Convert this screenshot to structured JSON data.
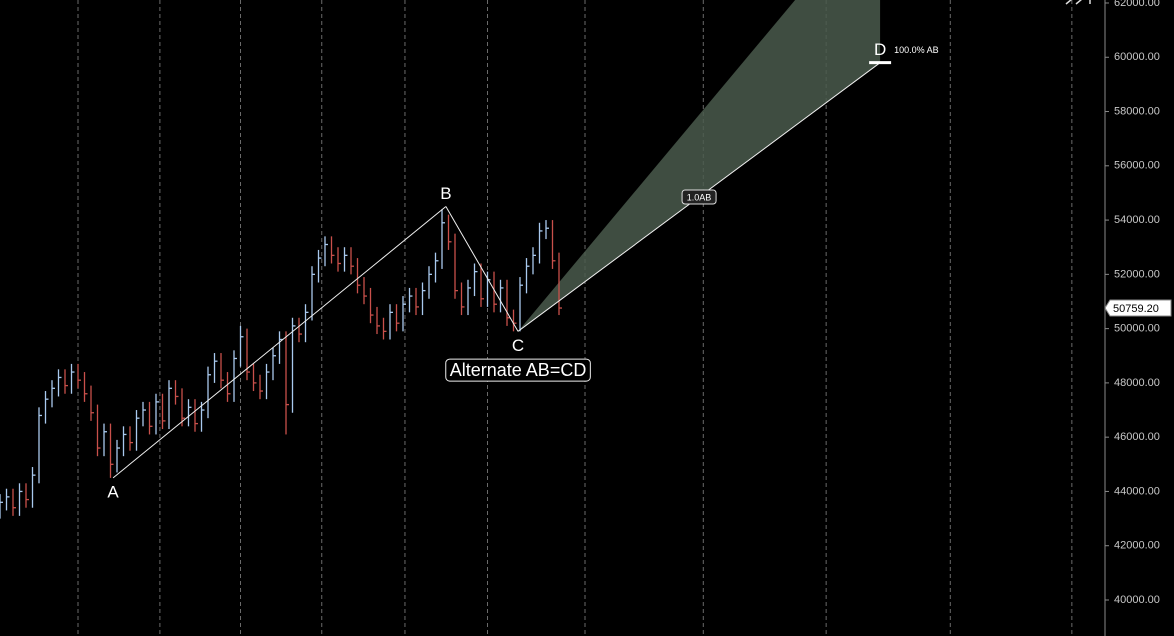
{
  "chart_data": {
    "type": "ohlc",
    "x": [
      0,
      1,
      2,
      3,
      4,
      5,
      6,
      7,
      8,
      9,
      10,
      11,
      12,
      13,
      14,
      15,
      16,
      17,
      18,
      19,
      20,
      21,
      22,
      23,
      24,
      25,
      26,
      27,
      28,
      29,
      30,
      31,
      32,
      33,
      34,
      35,
      36,
      37,
      38,
      39,
      40,
      41,
      42,
      43,
      44,
      45,
      46,
      47,
      48,
      49,
      50,
      51,
      52,
      53,
      54,
      55,
      56,
      57,
      58,
      59,
      60,
      61,
      62,
      63,
      64,
      65,
      66,
      67,
      68,
      69,
      70,
      71,
      72,
      73,
      74,
      75,
      76,
      77,
      78,
      79,
      80,
      81,
      82,
      83,
      84,
      85,
      86
    ],
    "high": [
      43900,
      44100,
      44100,
      44300,
      44300,
      44900,
      47100,
      47700,
      48100,
      48500,
      48500,
      48700,
      48700,
      48400,
      47900,
      47200,
      46500,
      46500,
      45900,
      46400,
      46400,
      47000,
      47300,
      47300,
      47600,
      47600,
      48100,
      48100,
      47800,
      47400,
      47400,
      47300,
      48600,
      49100,
      49100,
      48400,
      49200,
      50100,
      50000,
      48700,
      48300,
      48700,
      49300,
      49900,
      49900,
      50400,
      50400,
      50900,
      52300,
      52900,
      53400,
      53400,
      53000,
      53000,
      53000,
      52600,
      51900,
      51500,
      50800,
      50400,
      50900,
      50900,
      51200,
      51500,
      51500,
      51700,
      52300,
      52800,
      54400,
      54200,
      53500,
      51700,
      51800,
      52400,
      52400,
      52100,
      52100,
      51800,
      51800,
      50700,
      51900,
      52600,
      53000,
      53900,
      54000,
      54000,
      52800
    ],
    "low": [
      43000,
      43300,
      43100,
      43100,
      43400,
      43400,
      44300,
      46500,
      47100,
      47500,
      47600,
      47600,
      47800,
      47300,
      46600,
      45300,
      45300,
      44500,
      44700,
      45300,
      45500,
      45500,
      46400,
      46100,
      46100,
      46300,
      46300,
      47200,
      46400,
      46400,
      46200,
      46200,
      46700,
      48000,
      47800,
      47300,
      47300,
      48600,
      48100,
      47700,
      47400,
      47400,
      48100,
      48700,
      46100,
      46900,
      49500,
      49500,
      50300,
      51700,
      52300,
      52400,
      52100,
      52100,
      52000,
      51300,
      50900,
      50200,
      49800,
      49600,
      49600,
      49900,
      49900,
      50600,
      50500,
      50500,
      51100,
      51700,
      52200,
      52900,
      51100,
      50500,
      50500,
      51200,
      50800,
      50800,
      50600,
      50600,
      50100,
      49900,
      49900,
      51300,
      52000,
      52400,
      53300,
      52200,
      50500
    ],
    "close": [
      43600,
      43800,
      43400,
      44000,
      43700,
      44600,
      46800,
      47400,
      47800,
      48200,
      47900,
      48400,
      48100,
      47600,
      46900,
      45600,
      46200,
      45000,
      45600,
      46100,
      45800,
      46700,
      47000,
      46400,
      47300,
      46600,
      47800,
      47500,
      46700,
      47100,
      46500,
      47000,
      48300,
      48800,
      48100,
      47600,
      48900,
      49700,
      48400,
      48000,
      47700,
      48400,
      49000,
      49600,
      47200,
      50100,
      49800,
      50600,
      52000,
      52600,
      53100,
      52700,
      52400,
      52700,
      52300,
      51600,
      51200,
      50500,
      50100,
      49900,
      50600,
      50200,
      50900,
      51200,
      50800,
      51400,
      52000,
      52500,
      53900,
      53200,
      51400,
      50800,
      51500,
      52100,
      51100,
      51800,
      50900,
      51500,
      50400,
      50200,
      51600,
      52300,
      52700,
      53600,
      53700,
      52500,
      50759.2
    ],
    "up_color": "#a9c9ee",
    "down_color": "#c9504b",
    "xlim": [
      0,
      170
    ],
    "xgrid": [
      12,
      24.6,
      37,
      49.5,
      62.3,
      75,
      90,
      108.2,
      127.1,
      146.2,
      164.9
    ],
    "ylim": [
      38673,
      62110
    ],
    "yticks": [
      {
        "value": 40000,
        "label": "40000.00"
      },
      {
        "value": 42000,
        "label": "42000.00"
      },
      {
        "value": 44000,
        "label": "44000.00"
      },
      {
        "value": 46000,
        "label": "46000.00"
      },
      {
        "value": 48000,
        "label": "48000.00"
      },
      {
        "value": 50000,
        "label": "50000.00"
      },
      {
        "value": 52000,
        "label": "52000.00"
      },
      {
        "value": 54000,
        "label": "54000.00"
      },
      {
        "value": 56000,
        "label": "56000.00"
      },
      {
        "value": 58000,
        "label": "58000.00"
      },
      {
        "value": 60000,
        "label": "60000.00"
      },
      {
        "value": 62000,
        "label": "62000.00"
      }
    ],
    "last_price": {
      "value": 50759.2,
      "label": "50759.20"
    },
    "pattern": {
      "title": "Alternate AB=CD",
      "points": [
        {
          "label": "A",
          "x": 17.4,
          "y": 44500
        },
        {
          "label": "B",
          "x": 68.6,
          "y": 54500
        },
        {
          "label": "C",
          "x": 79.7,
          "y": 49900
        },
        {
          "label": "D",
          "x": 135.4,
          "y": 59800
        }
      ],
      "ratio_label": "1.0AB",
      "target_label": "100.0% AB"
    }
  }
}
